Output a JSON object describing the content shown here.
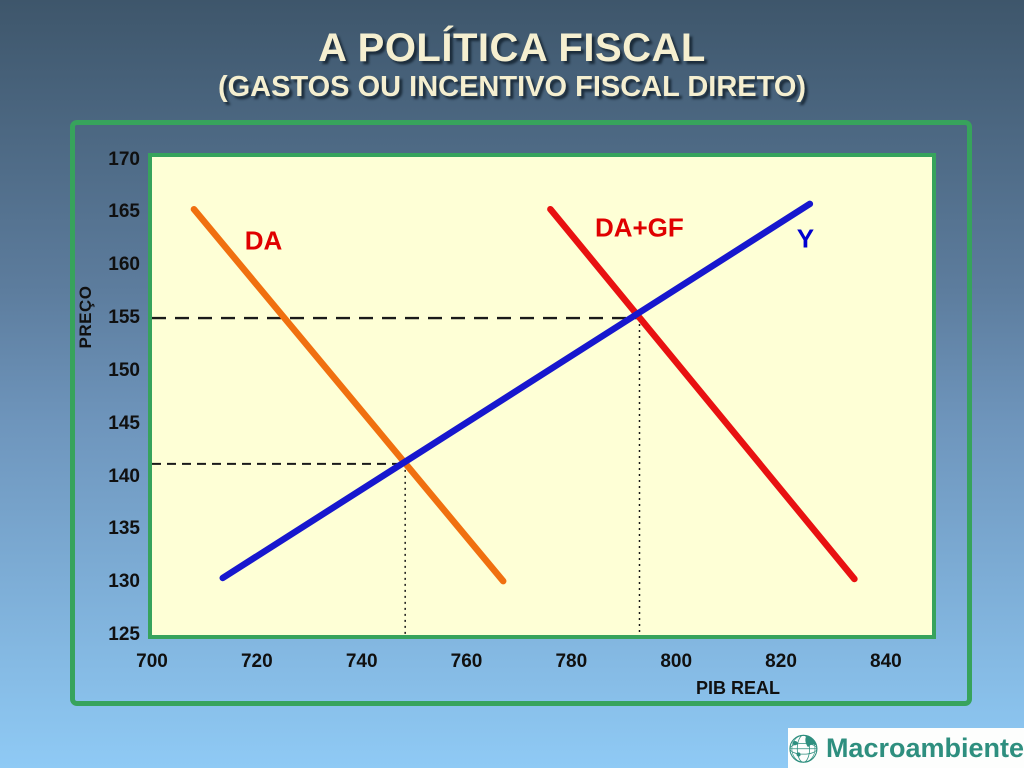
{
  "header": {
    "title_line1": "A POLÍTICA FISCAL",
    "title_line2": "(GASTOS OU INCENTIVO FISCAL DIRETO)"
  },
  "chart_data": {
    "type": "line",
    "title": "",
    "xlabel": "PIB REAL",
    "ylabel": "PREÇO",
    "xlim": [
      700,
      848.8
    ],
    "ylim": [
      125,
      170.24
    ],
    "x_ticks": [
      700,
      720,
      740,
      760,
      780,
      800,
      820,
      840
    ],
    "y_ticks": [
      170,
      165,
      160,
      155,
      150,
      145,
      140,
      135,
      130,
      125
    ],
    "grid": false,
    "legend": "inline-labels",
    "series": [
      {
        "name": "DA",
        "color": "#F07010",
        "points": [
          [
            708,
            165.3
          ],
          [
            767,
            130.1
          ]
        ]
      },
      {
        "name": "DA+GF",
        "color": "#E81111",
        "points": [
          [
            776,
            165.3
          ],
          [
            834,
            130.3
          ]
        ]
      },
      {
        "name": "Y",
        "color": "#1717CE",
        "points": [
          [
            713.5,
            130.4
          ],
          [
            825.5,
            165.8
          ]
        ]
      }
    ],
    "labels": [
      {
        "text": "DA",
        "color": "#E00000",
        "x": 717.7,
        "y": 162.3
      },
      {
        "text": "DA+GF",
        "color": "#E00000",
        "x": 784.5,
        "y": 163.5
      },
      {
        "text": "Y",
        "color": "#0000D0",
        "x": 823.0,
        "y": 162.5
      }
    ],
    "equilibria": [
      {
        "x": 748.3,
        "y": 141.2
      },
      {
        "x": 793.0,
        "y": 155.0
      }
    ],
    "guide_color": "#1a1a1a"
  },
  "logo": {
    "text": "Macroambiente",
    "color": "#2E8F7F"
  }
}
